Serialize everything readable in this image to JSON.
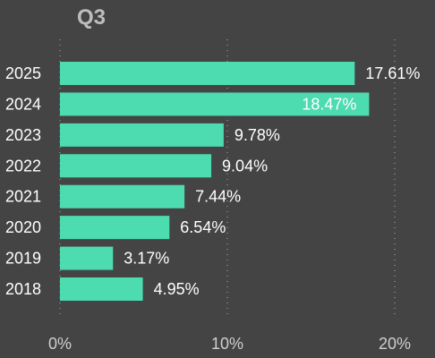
{
  "chart_data": {
    "type": "bar",
    "orientation": "horizontal",
    "title": "Q3",
    "categories": [
      "2025",
      "2024",
      "2023",
      "2022",
      "2021",
      "2020",
      "2019",
      "2018"
    ],
    "values": [
      17.61,
      18.47,
      9.78,
      9.04,
      7.44,
      6.54,
      3.17,
      4.95
    ],
    "value_labels": [
      "17.61%",
      "18.47%",
      "9.78%",
      "9.04%",
      "7.44%",
      "6.54%",
      "3.17%",
      "4.95%"
    ],
    "value_label_inside": [
      false,
      true,
      false,
      false,
      false,
      false,
      false,
      false
    ],
    "xlim": [
      0,
      20
    ],
    "xticks": [
      0,
      10,
      20
    ],
    "xtick_labels": [
      "0%",
      "10%",
      "20%"
    ],
    "grid": "vertical dotted",
    "colors": {
      "background": "#444444",
      "bar": "#4ddbb0",
      "title": "#bdbdbd",
      "label": "#ffffff",
      "tick_label": "#cfcfcf",
      "grid": "#9a9a9a"
    }
  }
}
